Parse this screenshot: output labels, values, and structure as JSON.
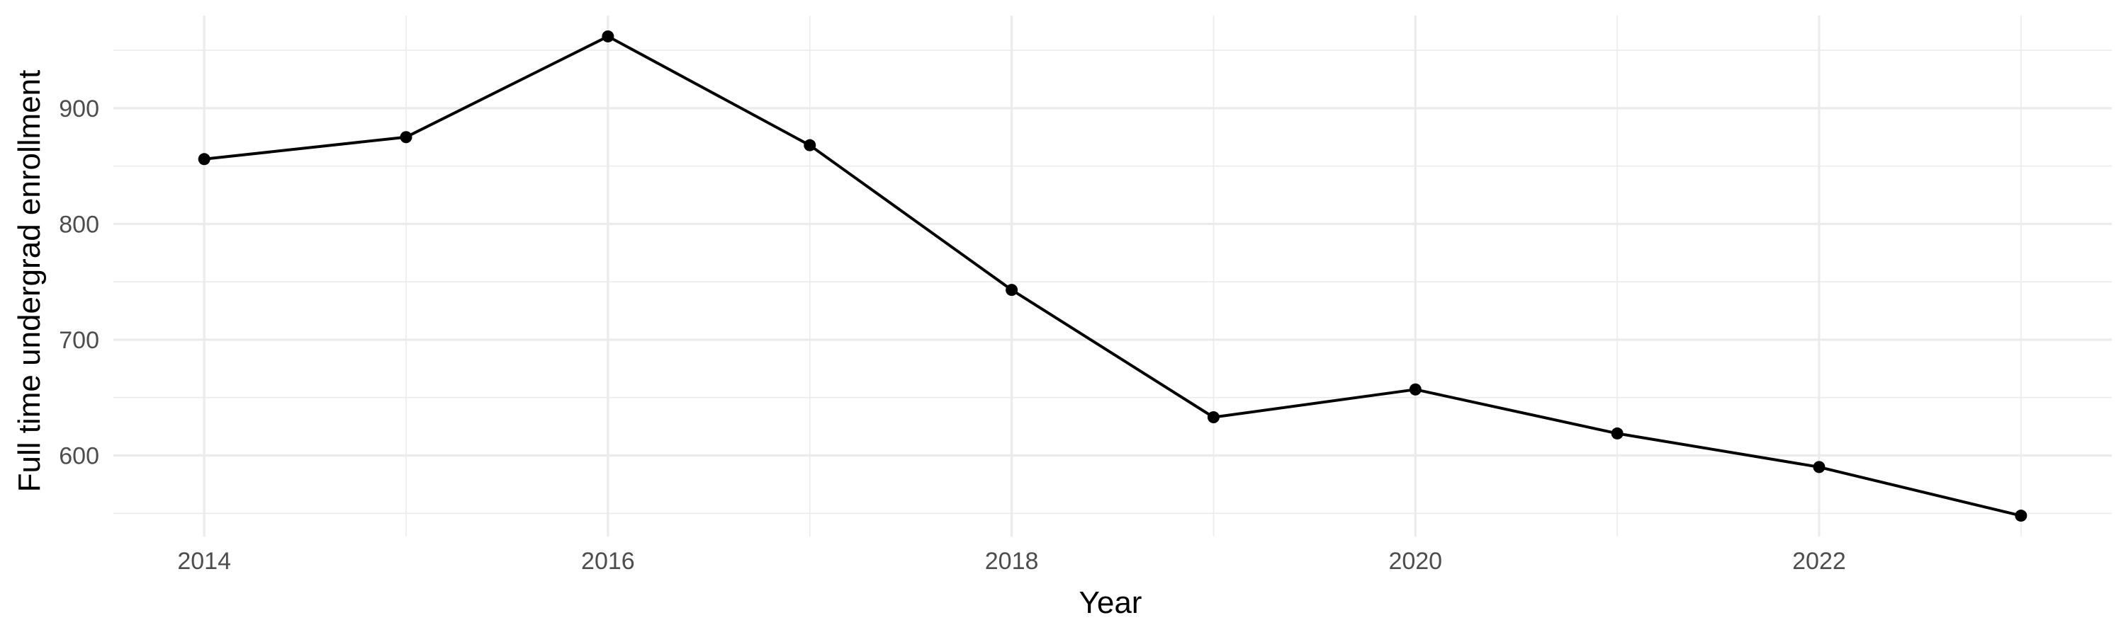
{
  "chart_data": {
    "type": "line",
    "xlabel": "Year",
    "ylabel": "Full time undergrad enrollment",
    "x": [
      2014,
      2015,
      2016,
      2017,
      2018,
      2019,
      2020,
      2021,
      2022,
      2023
    ],
    "series": [
      {
        "values": [
          856,
          875,
          962,
          868,
          743,
          633,
          657,
          619,
          590,
          548
        ]
      }
    ],
    "xticks": [
      "2014",
      "2016",
      "2018",
      "2020",
      "2022"
    ],
    "yticks": [
      "600",
      "700",
      "800",
      "900"
    ],
    "xlim": [
      2013.55,
      2023.45
    ],
    "ylim": [
      530,
      980
    ],
    "grid": true,
    "legend": "none",
    "colors": {
      "line": "#000000",
      "grid": "#ebebeb",
      "tick_text": "#4d4d4d"
    }
  }
}
